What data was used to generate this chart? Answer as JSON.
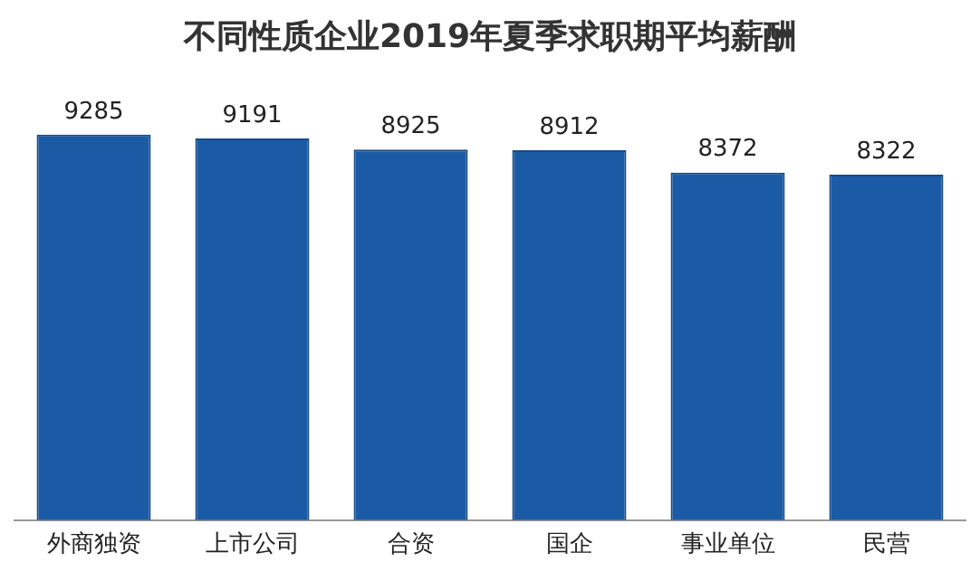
{
  "chart_data": {
    "type": "bar",
    "title": "不同性质企业2019年夏季求职期平均薪酬",
    "categories": [
      "外商独资",
      "上市公司",
      "合资",
      "国企",
      "事业单位",
      "民营"
    ],
    "values": [
      9285,
      9191,
      8925,
      8912,
      8372,
      8322
    ],
    "color": "#1b5ba6",
    "data_labels": true,
    "grid": false,
    "legend": false
  }
}
